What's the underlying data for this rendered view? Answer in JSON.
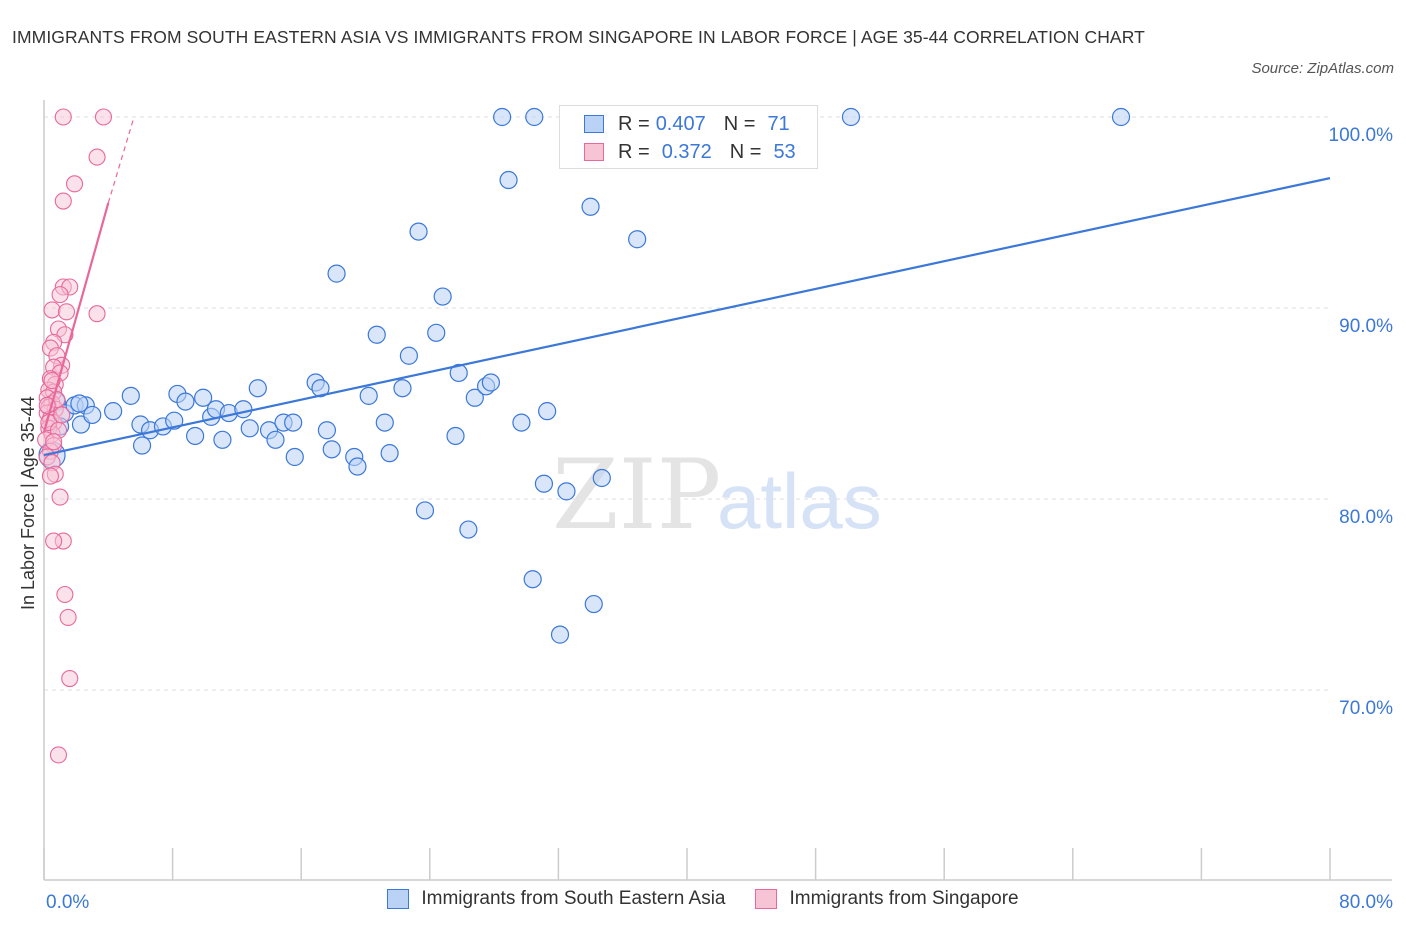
{
  "title": "IMMIGRANTS FROM SOUTH EASTERN ASIA VS IMMIGRANTS FROM SINGAPORE IN LABOR FORCE | AGE 35-44 CORRELATION CHART",
  "source": "Source: ZipAtlas.com",
  "watermark": {
    "zip": "ZIP",
    "atlas": "atlas"
  },
  "colors": {
    "blue": "#3b78d8",
    "blue_fill": "#b9d2f5",
    "pink": "#e8689a",
    "pink_fill": "#f7c4d6",
    "grid": "#dddddd"
  },
  "legend_top": [
    {
      "r_label": "R =",
      "r_value": "0.407",
      "n_label": "N =",
      "n_value": "71"
    },
    {
      "r_label": "R =",
      "r_value": "0.372",
      "n_label": "N =",
      "n_value": "53"
    }
  ],
  "chart_data": {
    "type": "scatter",
    "title": "IMMIGRANTS FROM SOUTH EASTERN ASIA VS IMMIGRANTS FROM SINGAPORE IN LABOR FORCE | AGE 35-44 CORRELATION CHART",
    "xlabel": "",
    "ylabel": "In Labor Force | Age 35-44",
    "xlim": [
      0,
      80
    ],
    "ylim": [
      60,
      100
    ],
    "x_tick_labels": [
      "0.0%",
      "80.0%"
    ],
    "y_tick_labels": [
      "70.0%",
      "80.0%",
      "90.0%",
      "100.0%"
    ],
    "y_ticks": [
      70,
      80,
      90,
      100
    ],
    "grid": true,
    "legend": "bottom",
    "series": [
      {
        "name": "Immigrants from South Eastern Asia",
        "color": "#3b78d8",
        "trend": {
          "x": [
            0,
            80
          ],
          "y": [
            82.3,
            96.8
          ]
        },
        "points": [
          [
            0.5,
            82.3
          ],
          [
            0.8,
            85.1
          ],
          [
            1.3,
            84.5
          ],
          [
            1.9,
            84.9
          ],
          [
            2.3,
            83.9
          ],
          [
            2.6,
            84.9
          ],
          [
            3.0,
            84.4
          ],
          [
            4.3,
            84.6
          ],
          [
            5.4,
            85.4
          ],
          [
            6.0,
            83.9
          ],
          [
            6.1,
            82.8
          ],
          [
            6.6,
            83.6
          ],
          [
            7.4,
            83.8
          ],
          [
            8.1,
            84.1
          ],
          [
            8.3,
            85.5
          ],
          [
            8.8,
            85.1
          ],
          [
            9.4,
            83.3
          ],
          [
            9.9,
            85.3
          ],
          [
            10.4,
            84.3
          ],
          [
            10.7,
            84.7
          ],
          [
            11.1,
            83.1
          ],
          [
            11.5,
            84.5
          ],
          [
            12.4,
            84.7
          ],
          [
            12.8,
            83.7
          ],
          [
            13.3,
            85.8
          ],
          [
            14.0,
            83.6
          ],
          [
            14.4,
            83.1
          ],
          [
            14.9,
            84.0
          ],
          [
            15.5,
            84.0
          ],
          [
            15.6,
            82.2
          ],
          [
            16.9,
            86.1
          ],
          [
            17.2,
            85.8
          ],
          [
            17.6,
            83.6
          ],
          [
            17.9,
            82.6
          ],
          [
            18.2,
            91.8
          ],
          [
            19.3,
            82.2
          ],
          [
            19.5,
            81.7
          ],
          [
            20.2,
            85.4
          ],
          [
            20.7,
            88.6
          ],
          [
            21.2,
            84.0
          ],
          [
            21.5,
            82.4
          ],
          [
            22.3,
            85.8
          ],
          [
            22.7,
            87.5
          ],
          [
            23.3,
            94.0
          ],
          [
            23.7,
            79.4
          ],
          [
            24.4,
            88.7
          ],
          [
            24.8,
            90.6
          ],
          [
            25.6,
            83.3
          ],
          [
            25.8,
            86.6
          ],
          [
            26.4,
            78.4
          ],
          [
            26.8,
            85.3
          ],
          [
            27.5,
            85.9
          ],
          [
            27.8,
            86.1
          ],
          [
            28.5,
            100.0
          ],
          [
            28.9,
            96.7
          ],
          [
            29.7,
            84.0
          ],
          [
            30.4,
            75.8
          ],
          [
            30.5,
            100.0
          ],
          [
            31.1,
            80.8
          ],
          [
            31.3,
            84.6
          ],
          [
            32.1,
            72.9
          ],
          [
            32.5,
            80.4
          ],
          [
            34.0,
            95.3
          ],
          [
            34.2,
            74.5
          ],
          [
            34.7,
            81.1
          ],
          [
            36.9,
            93.6
          ],
          [
            43.1,
            100.0
          ],
          [
            50.2,
            100.0
          ],
          [
            67.0,
            100.0
          ],
          [
            1.0,
            83.8
          ],
          [
            2.2,
            85.0
          ]
        ]
      },
      {
        "name": "Immigrants from Singapore",
        "color": "#e8689a",
        "trend": {
          "x": [
            0,
            4.0
          ],
          "y": [
            83.5,
            95.5
          ]
        },
        "trend_ext": {
          "x": [
            4.0,
            5.6
          ],
          "y": [
            95.5,
            100.0
          ]
        },
        "points": [
          [
            1.2,
            100.0
          ],
          [
            3.7,
            100.0
          ],
          [
            3.3,
            97.9
          ],
          [
            1.9,
            96.5
          ],
          [
            1.2,
            95.6
          ],
          [
            1.2,
            91.1
          ],
          [
            1.6,
            91.1
          ],
          [
            1.0,
            90.7
          ],
          [
            3.3,
            89.7
          ],
          [
            0.5,
            89.9
          ],
          [
            1.4,
            89.8
          ],
          [
            0.9,
            88.9
          ],
          [
            1.3,
            88.6
          ],
          [
            0.6,
            88.2
          ],
          [
            0.4,
            87.9
          ],
          [
            0.8,
            87.5
          ],
          [
            1.1,
            87.0
          ],
          [
            0.6,
            86.9
          ],
          [
            1.0,
            86.6
          ],
          [
            0.4,
            86.3
          ],
          [
            0.7,
            86.0
          ],
          [
            0.3,
            85.7
          ],
          [
            0.6,
            85.6
          ],
          [
            0.2,
            85.3
          ],
          [
            0.5,
            85.0
          ],
          [
            0.3,
            84.8
          ],
          [
            0.7,
            84.7
          ],
          [
            0.2,
            84.5
          ],
          [
            0.4,
            84.2
          ],
          [
            0.6,
            84.0
          ],
          [
            0.3,
            83.7
          ],
          [
            0.5,
            83.4
          ],
          [
            0.1,
            83.1
          ],
          [
            0.6,
            82.8
          ],
          [
            0.4,
            82.5
          ],
          [
            0.2,
            82.2
          ],
          [
            0.5,
            81.9
          ],
          [
            0.7,
            81.3
          ],
          [
            0.4,
            81.2
          ],
          [
            1.0,
            80.1
          ],
          [
            1.2,
            77.8
          ],
          [
            0.6,
            77.8
          ],
          [
            1.3,
            75.0
          ],
          [
            1.5,
            73.8
          ],
          [
            1.6,
            70.6
          ],
          [
            0.9,
            66.6
          ],
          [
            0.3,
            84.0
          ],
          [
            0.8,
            85.2
          ],
          [
            0.5,
            86.2
          ],
          [
            0.9,
            83.6
          ],
          [
            0.2,
            84.9
          ],
          [
            0.6,
            83.0
          ],
          [
            1.1,
            84.4
          ]
        ]
      }
    ]
  }
}
